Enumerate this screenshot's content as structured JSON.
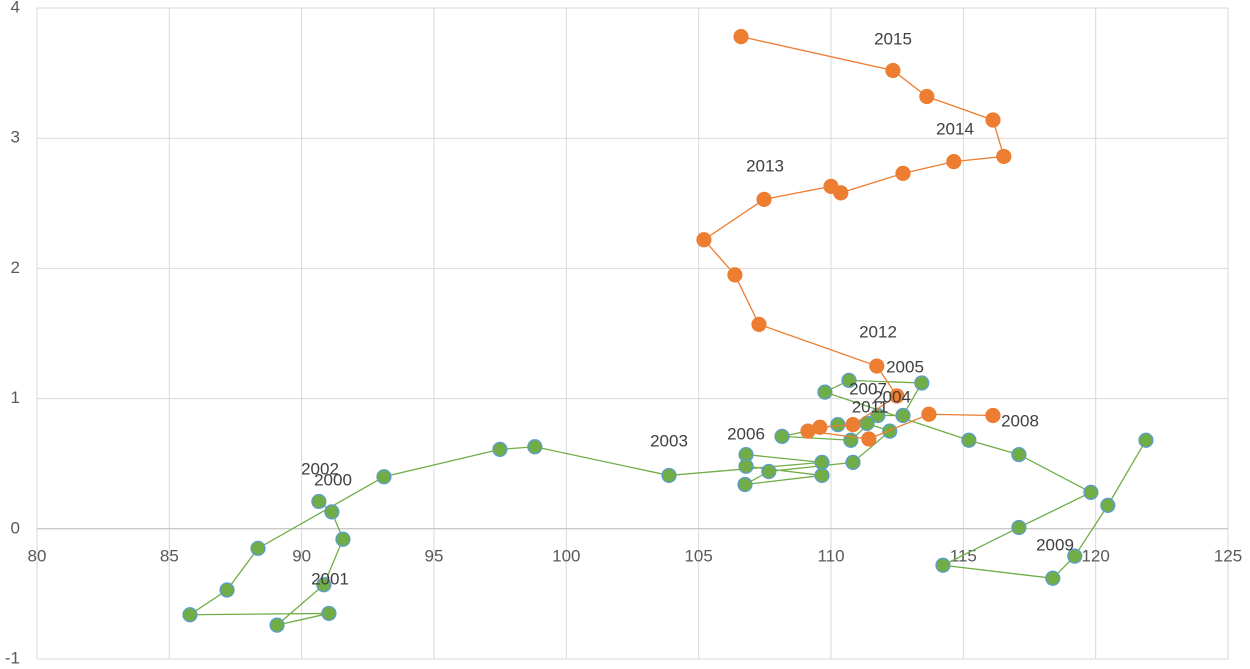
{
  "chart_data": {
    "type": "scatter",
    "connected": true,
    "grid": true,
    "xlim": [
      80,
      125
    ],
    "xticks": [
      80,
      85,
      90,
      95,
      100,
      105,
      110,
      115,
      120,
      125
    ],
    "ylim": [
      -1,
      4
    ],
    "yticks": [
      -1,
      0,
      1,
      2,
      3,
      4
    ],
    "series": [
      {
        "color": "#70ad47",
        "marker_edge": "#5b9bd5",
        "x": [
          90.65,
          91.14,
          91.56,
          90.84,
          89.07,
          91.03,
          85.78,
          87.18,
          88.35,
          93.11,
          97.49,
          98.81,
          103.88,
          109.66,
          106.79,
          106.79,
          109.66,
          106.75,
          107.65,
          110.83,
          112.22,
          111.36,
          110.26,
          108.15,
          110.75,
          111.77,
          112.72,
          113.43,
          110.68,
          109.77,
          115.21,
          117.1,
          119.82,
          117.1,
          114.23,
          118.38,
          119.21,
          120.46,
          121.9
        ],
        "values": [
          0.21,
          0.13,
          -0.08,
          -0.43,
          -0.74,
          -0.65,
          -0.66,
          -0.47,
          -0.15,
          0.4,
          0.61,
          0.63,
          0.41,
          0.51,
          0.57,
          0.48,
          0.41,
          0.34,
          0.44,
          0.51,
          0.75,
          0.81,
          0.8,
          0.71,
          0.68,
          0.87,
          0.87,
          1.12,
          1.14,
          1.05,
          0.68,
          0.57,
          0.28,
          0.01,
          -0.28,
          -0.38,
          -0.21,
          0.18,
          0.68
        ]
      },
      {
        "color": "#ed7d31",
        "marker_edge": "#ed7d31",
        "x": [
          116.12,
          113.7,
          111.43,
          109.13,
          109.58,
          110.83,
          112.49,
          111.73,
          107.28,
          106.37,
          105.2,
          107.47,
          110.0,
          110.37,
          112.72,
          114.64,
          116.53,
          116.12,
          113.62,
          112.34,
          106.6
        ],
        "values": [
          0.87,
          0.88,
          0.69,
          0.75,
          0.78,
          0.8,
          1.02,
          1.25,
          1.57,
          1.95,
          2.22,
          2.53,
          2.63,
          2.58,
          2.73,
          2.82,
          2.86,
          3.14,
          3.32,
          3.52,
          3.78
        ]
      }
    ],
    "annotations": [
      "2000",
      "2001",
      "2002",
      "2003",
      "2004",
      "2005",
      "2006",
      "2007",
      "2008",
      "2009",
      "2011",
      "2012",
      "2013",
      "2014",
      "2015"
    ]
  }
}
